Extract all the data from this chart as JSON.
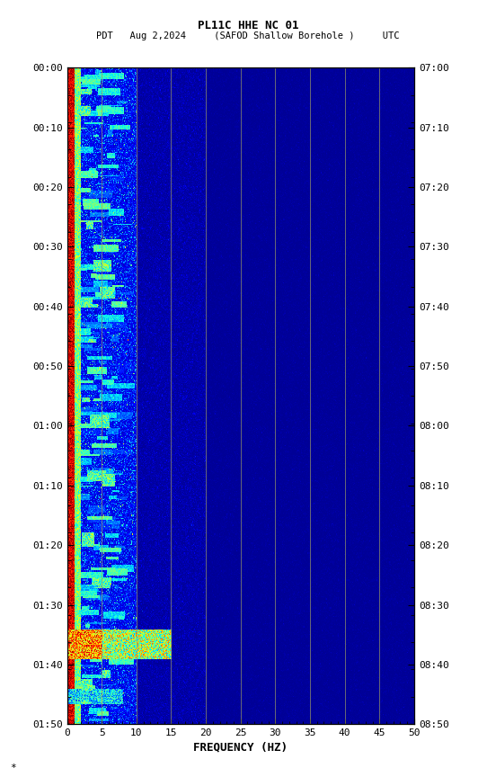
{
  "title_line1": "PL11C HHE NC 01",
  "title_line2_left": "PDT   Aug 2,2024     (SAFOD Shallow Borehole )",
  "title_line2_right": "UTC",
  "xlabel": "FREQUENCY (HZ)",
  "freq_min": 0,
  "freq_max": 50,
  "ytick_labels_left": [
    "00:00",
    "00:10",
    "00:20",
    "00:30",
    "00:40",
    "00:50",
    "01:00",
    "01:10",
    "01:20",
    "01:30",
    "01:40",
    "01:50"
  ],
  "ytick_labels_right": [
    "07:00",
    "07:10",
    "07:20",
    "07:30",
    "07:40",
    "07:50",
    "08:00",
    "08:10",
    "08:20",
    "08:30",
    "08:40",
    "08:50"
  ],
  "xtick_positions": [
    0,
    5,
    10,
    15,
    20,
    25,
    30,
    35,
    40,
    45,
    50
  ],
  "vertical_lines_freq": [
    5,
    10,
    15,
    20,
    25,
    30,
    35,
    40,
    45
  ],
  "bg_color": "#ffffff",
  "fig_width": 5.52,
  "fig_height": 8.64,
  "dpi": 100,
  "colormap": "jet",
  "noise_seed": 42,
  "n_time": 660,
  "n_freq": 500
}
